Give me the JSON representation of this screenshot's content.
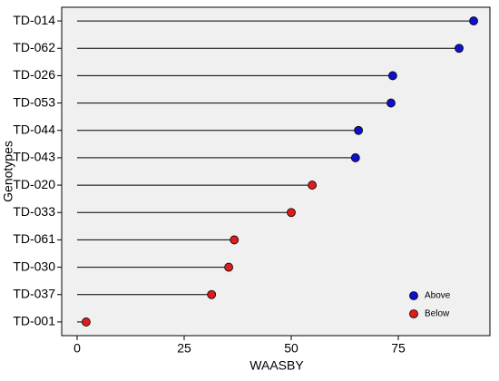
{
  "chart_data": {
    "type": "lollipop",
    "x_label": "WAASBY",
    "y_label": "Genotypes",
    "categories": [
      "TD-014",
      "TD-062",
      "TD-026",
      "TD-053",
      "TD-044",
      "TD-043",
      "TD-020",
      "TD-033",
      "TD-061",
      "TD-030",
      "TD-037",
      "TD-001"
    ],
    "series": [
      {
        "name": "Above",
        "color": "#1010cc",
        "values": [
          92.6,
          89.2,
          73.7,
          73.3,
          65.7,
          65.0,
          null,
          null,
          null,
          null,
          null,
          null
        ]
      },
      {
        "name": "Below",
        "color": "#dd1c1c",
        "values": [
          null,
          null,
          null,
          null,
          null,
          null,
          54.9,
          50.0,
          36.7,
          35.4,
          31.4,
          2.1
        ]
      }
    ],
    "xlim": [
      -3.6,
      96.4
    ],
    "xticks": [
      0,
      25,
      50,
      75
    ],
    "legend": "bottom-right"
  }
}
